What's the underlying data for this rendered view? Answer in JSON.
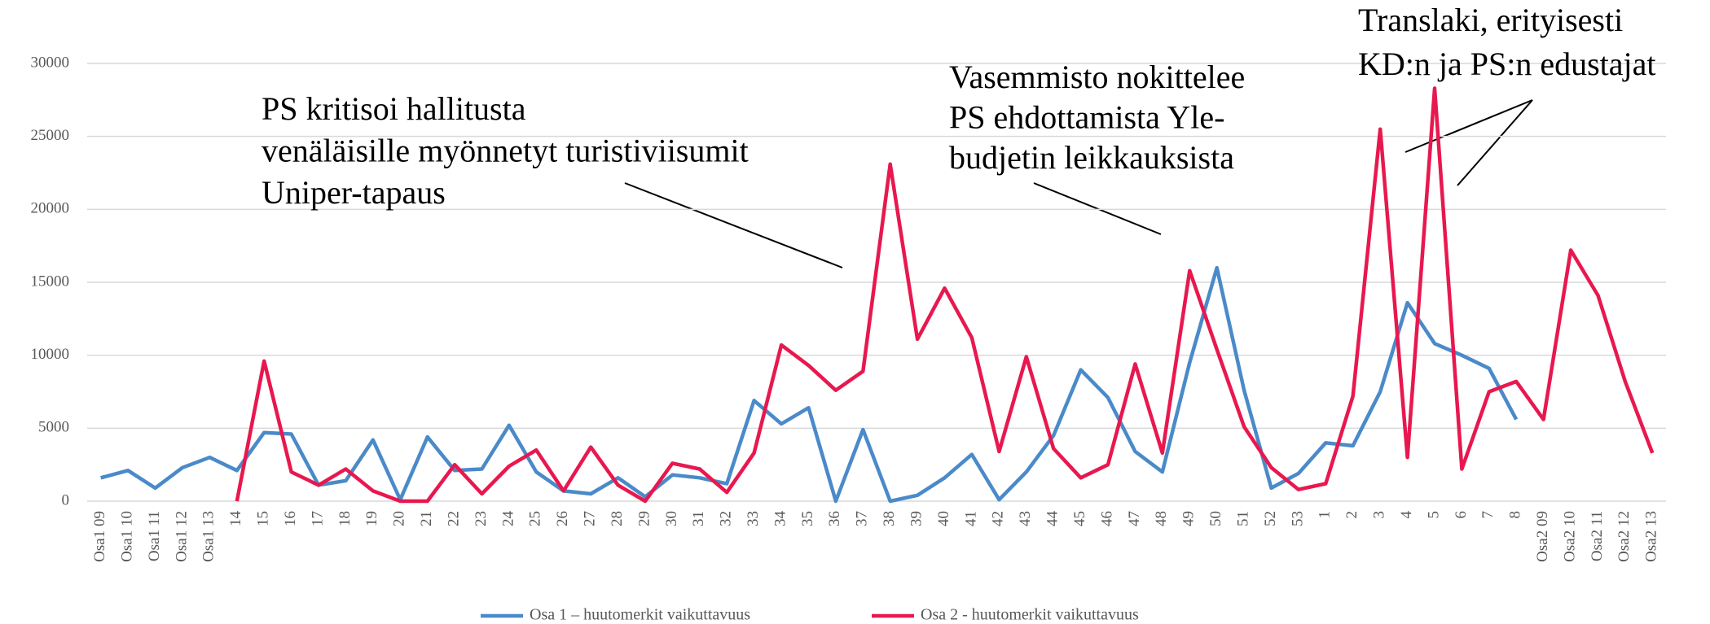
{
  "chart_data": {
    "type": "line",
    "categories": [
      "Osa1 09",
      "Osa1 10",
      "Osa1 11",
      "Osa1 12",
      "Osa1 13",
      "14",
      "15",
      "16",
      "17",
      "18",
      "19",
      "20",
      "21",
      "22",
      "23",
      "24",
      "25",
      "26",
      "27",
      "28",
      "29",
      "30",
      "31",
      "32",
      "33",
      "34",
      "35",
      "36",
      "37",
      "38",
      "39",
      "40",
      "41",
      "42",
      "43",
      "44",
      "45",
      "46",
      "47",
      "48",
      "49",
      "50",
      "51",
      "52",
      "53",
      "1",
      "2",
      "3",
      "4",
      "5",
      "6",
      "7",
      "8",
      "Osa2 09",
      "Osa2 10",
      "Osa2 11",
      "Osa2 12",
      "Osa2 13"
    ],
    "series": [
      {
        "name": "Osa 1 – huutomerkit vaikuttavuus",
        "color": "#4a8ac9",
        "values": [
          1600,
          2100,
          900,
          2300,
          3000,
          2100,
          4700,
          4600,
          1100,
          1400,
          4200,
          100,
          4400,
          2100,
          2200,
          5200,
          2000,
          700,
          500,
          1600,
          300,
          1800,
          1600,
          1200,
          6900,
          5300,
          6400,
          0,
          4900,
          0,
          400,
          1600,
          3200,
          100,
          2000,
          4500,
          9000,
          7100,
          3400,
          2000,
          9500,
          16000,
          7600,
          900,
          1900,
          4000,
          3800,
          7500,
          13600,
          10800,
          10000,
          9100,
          5600,
          null,
          null,
          null,
          null,
          null
        ]
      },
      {
        "name": "Osa 2 - huutomerkit vaikuttavuus",
        "color": "#e8184f",
        "values": [
          null,
          null,
          null,
          null,
          null,
          0,
          9600,
          2000,
          1100,
          2200,
          700,
          0,
          0,
          2500,
          500,
          2400,
          3500,
          700,
          3700,
          1100,
          0,
          2600,
          2200,
          600,
          3300,
          10700,
          9300,
          7600,
          8900,
          23100,
          11100,
          14600,
          11200,
          3400,
          9900,
          3600,
          1600,
          2500,
          9400,
          3300,
          15800,
          10400,
          5100,
          2300,
          800,
          1200,
          7200,
          25500,
          3000,
          28300,
          2200,
          7500,
          8200,
          5600,
          17200,
          14100,
          8200,
          3300
        ]
      }
    ],
    "ylim": [
      0,
      30000
    ],
    "yticks": [
      0,
      5000,
      10000,
      15000,
      20000,
      25000,
      30000
    ],
    "grid": true,
    "annotations": [
      [
        "PS kritisoi hallitusta",
        "venäläisille myönnetyt turistiviisumit",
        "Uniper-tapaus"
      ],
      [
        "Vasemmisto nokittelee",
        "PS ehdottamista Yle-",
        "budjetin leikkauksista"
      ],
      [
        "Translaki, erityisesti",
        "KD:n ja PS:n edustajat"
      ]
    ]
  }
}
